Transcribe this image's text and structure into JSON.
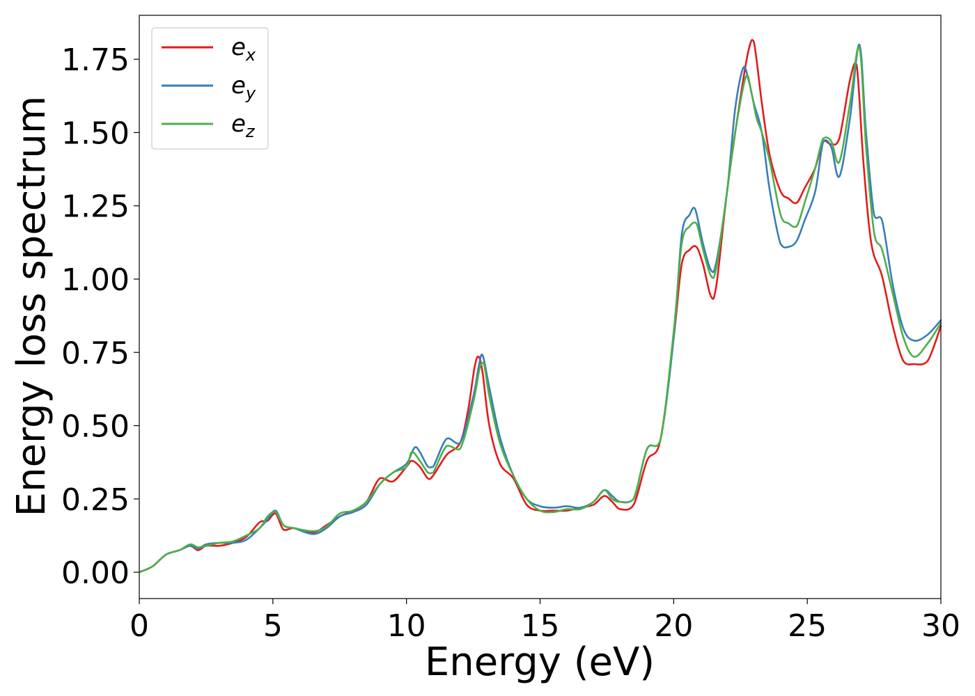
{
  "chart_data": {
    "type": "line",
    "xlabel": "Energy (eV)",
    "ylabel": "Energy loss spectrum",
    "xlim": [
      0,
      30
    ],
    "ylim": [
      -0.09,
      1.9
    ],
    "xticks": [
      0,
      5,
      10,
      15,
      20,
      25,
      30
    ],
    "xtick_labels": [
      "0",
      "5",
      "10",
      "15",
      "20",
      "25",
      "30"
    ],
    "yticks": [
      0,
      0.25,
      0.5,
      0.75,
      1.0,
      1.25,
      1.5,
      1.75
    ],
    "ytick_labels": [
      "0.00",
      "0.25",
      "0.50",
      "0.75",
      "1.00",
      "1.25",
      "1.50",
      "1.75"
    ],
    "grid": false,
    "legend_position": "top-left",
    "series": [
      {
        "name": "e",
        "subscript": "x",
        "color": "#e41a1c",
        "x": [
          0,
          0.5,
          1,
          1.5,
          1.9,
          2.2,
          2.5,
          3,
          3.5,
          4,
          4.5,
          4.8,
          5.1,
          5.4,
          5.8,
          6.5,
          7,
          7.5,
          8,
          8.5,
          9,
          9.5,
          10,
          10.2,
          10.5,
          10.8,
          11,
          11.5,
          12,
          12.3,
          12.55,
          12.7,
          12.85,
          13.1,
          13.5,
          14,
          14.5,
          15,
          15.5,
          16,
          16.5,
          17,
          17.4,
          17.7,
          18,
          18.5,
          19,
          19.5,
          20,
          20.3,
          20.6,
          20.85,
          21.1,
          21.4,
          21.6,
          22,
          22.5,
          22.8,
          23,
          23.3,
          23.6,
          24,
          24.3,
          24.6,
          24.9,
          25.3,
          25.6,
          25.9,
          26.2,
          26.6,
          26.85,
          27.1,
          27.4,
          27.8,
          28.2,
          28.6,
          29,
          29.5,
          30
        ],
        "y": [
          0,
          0.02,
          0.06,
          0.075,
          0.09,
          0.075,
          0.09,
          0.09,
          0.1,
          0.12,
          0.17,
          0.175,
          0.2,
          0.145,
          0.15,
          0.135,
          0.16,
          0.19,
          0.21,
          0.24,
          0.32,
          0.31,
          0.36,
          0.38,
          0.36,
          0.32,
          0.33,
          0.4,
          0.44,
          0.55,
          0.7,
          0.735,
          0.68,
          0.5,
          0.37,
          0.32,
          0.23,
          0.21,
          0.21,
          0.21,
          0.22,
          0.23,
          0.26,
          0.24,
          0.215,
          0.23,
          0.38,
          0.45,
          0.8,
          1.05,
          1.1,
          1.11,
          1.05,
          0.94,
          0.98,
          1.3,
          1.62,
          1.78,
          1.81,
          1.6,
          1.42,
          1.3,
          1.275,
          1.26,
          1.31,
          1.38,
          1.47,
          1.46,
          1.48,
          1.68,
          1.73,
          1.4,
          1.12,
          1.01,
          0.84,
          0.72,
          0.71,
          0.72,
          0.84
        ]
      },
      {
        "name": "e",
        "subscript": "y",
        "color": "#377eb8",
        "x": [
          0,
          0.5,
          1,
          1.5,
          1.9,
          2.2,
          2.5,
          3,
          3.5,
          4,
          4.5,
          4.8,
          5.1,
          5.4,
          5.8,
          6.5,
          7,
          7.5,
          8,
          8.5,
          9,
          9.5,
          10,
          10.3,
          10.5,
          10.8,
          11,
          11.5,
          12,
          12.5,
          12.7,
          12.85,
          13.1,
          13.5,
          14,
          14.5,
          15,
          15.5,
          16,
          16.5,
          17,
          17.4,
          17.7,
          18,
          18.5,
          19,
          19.5,
          20,
          20.3,
          20.6,
          20.8,
          21.1,
          21.4,
          21.6,
          22,
          22.3,
          22.6,
          22.8,
          23,
          23.3,
          23.6,
          24,
          24.3,
          24.6,
          24.9,
          25.3,
          25.6,
          25.9,
          26.2,
          26.6,
          26.95,
          27.2,
          27.5,
          27.8,
          28.2,
          28.6,
          29,
          29.5,
          30
        ],
        "y": [
          0,
          0.02,
          0.06,
          0.075,
          0.09,
          0.08,
          0.095,
          0.1,
          0.1,
          0.11,
          0.15,
          0.18,
          0.21,
          0.16,
          0.15,
          0.13,
          0.15,
          0.19,
          0.205,
          0.23,
          0.3,
          0.34,
          0.37,
          0.425,
          0.41,
          0.36,
          0.36,
          0.455,
          0.44,
          0.6,
          0.7,
          0.74,
          0.63,
          0.46,
          0.33,
          0.25,
          0.225,
          0.22,
          0.225,
          0.22,
          0.24,
          0.28,
          0.26,
          0.24,
          0.25,
          0.42,
          0.45,
          0.8,
          1.15,
          1.22,
          1.24,
          1.12,
          1.03,
          1.06,
          1.3,
          1.58,
          1.72,
          1.68,
          1.6,
          1.5,
          1.3,
          1.12,
          1.11,
          1.13,
          1.2,
          1.3,
          1.47,
          1.45,
          1.35,
          1.55,
          1.8,
          1.5,
          1.22,
          1.2,
          0.98,
          0.83,
          0.79,
          0.81,
          0.86
        ]
      },
      {
        "name": "e",
        "subscript": "z",
        "color": "#4daf4a",
        "x": [
          0,
          0.5,
          1,
          1.5,
          1.9,
          2.2,
          2.5,
          3,
          3.5,
          4,
          4.5,
          4.8,
          5.1,
          5.4,
          5.8,
          6.5,
          7,
          7.5,
          8,
          8.5,
          9,
          9.5,
          10,
          10.2,
          10.5,
          10.8,
          11,
          11.5,
          12,
          12.5,
          12.75,
          12.9,
          13.1,
          13.5,
          14,
          14.5,
          15,
          15.5,
          16,
          16.5,
          17,
          17.4,
          17.7,
          18,
          18.5,
          19,
          19.5,
          20,
          20.3,
          20.6,
          20.85,
          21.1,
          21.4,
          21.6,
          22,
          22.3,
          22.7,
          22.9,
          23.1,
          23.3,
          23.6,
          24,
          24.3,
          24.6,
          24.9,
          25.3,
          25.6,
          25.9,
          26.2,
          26.6,
          26.95,
          27.2,
          27.5,
          27.8,
          28.2,
          28.6,
          29,
          29.5,
          30
        ],
        "y": [
          0,
          0.02,
          0.06,
          0.075,
          0.095,
          0.085,
          0.09,
          0.1,
          0.105,
          0.125,
          0.15,
          0.19,
          0.205,
          0.16,
          0.15,
          0.14,
          0.155,
          0.2,
          0.21,
          0.24,
          0.3,
          0.34,
          0.36,
          0.41,
          0.38,
          0.34,
          0.34,
          0.43,
          0.42,
          0.58,
          0.7,
          0.71,
          0.6,
          0.44,
          0.33,
          0.25,
          0.21,
          0.205,
          0.215,
          0.215,
          0.24,
          0.28,
          0.25,
          0.24,
          0.25,
          0.42,
          0.45,
          0.82,
          1.12,
          1.18,
          1.19,
          1.1,
          1.01,
          1.04,
          1.3,
          1.5,
          1.69,
          1.64,
          1.55,
          1.5,
          1.4,
          1.22,
          1.19,
          1.18,
          1.26,
          1.38,
          1.48,
          1.47,
          1.4,
          1.6,
          1.79,
          1.45,
          1.16,
          1.1,
          0.95,
          0.8,
          0.735,
          0.78,
          0.85
        ]
      }
    ]
  }
}
